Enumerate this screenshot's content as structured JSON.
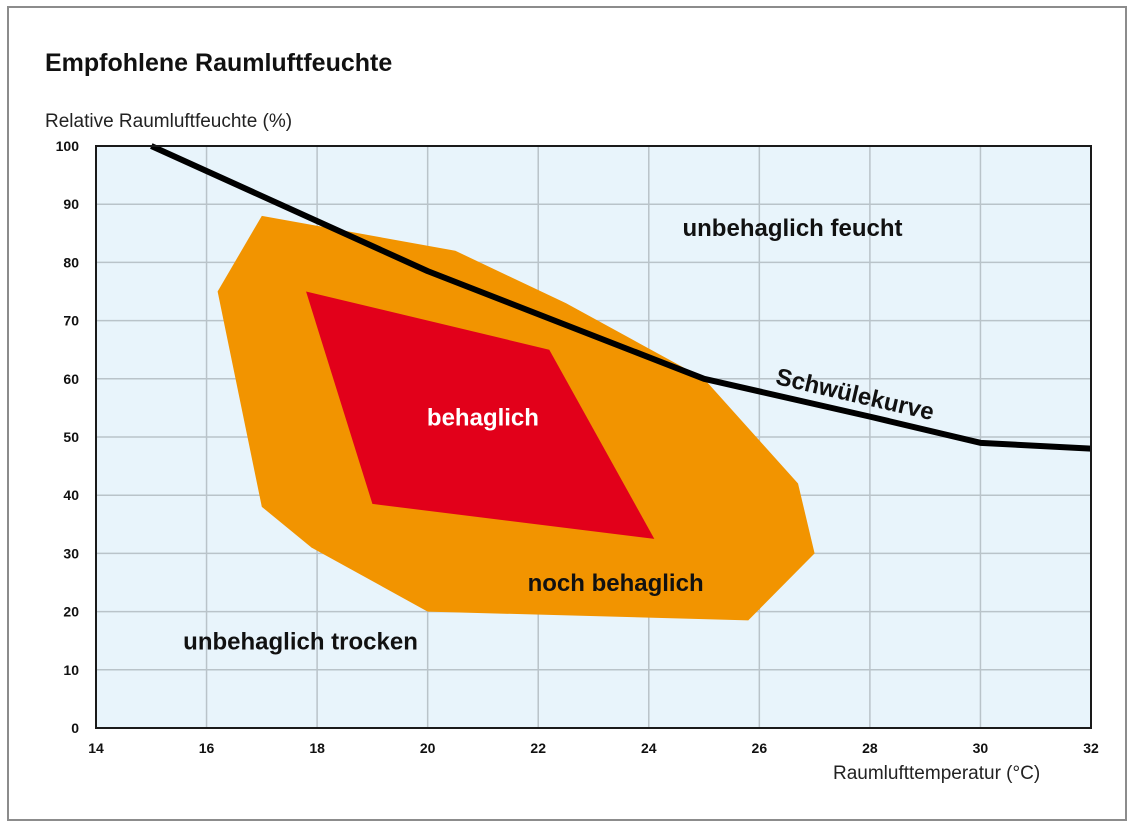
{
  "chart_data": {
    "type": "area",
    "title": "Empfohlene Raumluftfeuchte",
    "ylabel": "Relative Raumluftfeuchte (%)",
    "xlabel": "Raumlufttemperatur (°C)",
    "xlim": [
      14,
      32
    ],
    "ylim": [
      0,
      100
    ],
    "x_ticks": [
      14,
      16,
      18,
      20,
      22,
      24,
      26,
      28,
      30,
      32
    ],
    "y_ticks": [
      0,
      10,
      20,
      30,
      40,
      50,
      60,
      70,
      80,
      90,
      100
    ],
    "grid": true,
    "background_color": "#e8f4fb",
    "series": [
      {
        "name": "noch behaglich",
        "color": "#f29400",
        "polygon": [
          [
            17,
            88
          ],
          [
            20.5,
            82
          ],
          [
            22.5,
            73
          ],
          [
            25,
            60
          ],
          [
            26.7,
            42
          ],
          [
            27,
            30
          ],
          [
            25.8,
            18.5
          ],
          [
            20,
            20
          ],
          [
            17.9,
            31
          ],
          [
            17,
            38
          ],
          [
            16.2,
            75
          ]
        ]
      },
      {
        "name": "behaglich",
        "color": "#e2001a",
        "polygon": [
          [
            17.8,
            75
          ],
          [
            22.2,
            65
          ],
          [
            24.1,
            32.5
          ],
          [
            19,
            38.5
          ]
        ]
      },
      {
        "name": "Schwülekurve",
        "color": "#000000",
        "points": [
          [
            15,
            100
          ],
          [
            20,
            78.5
          ],
          [
            25,
            60
          ],
          [
            28,
            53.5
          ],
          [
            30,
            49
          ],
          [
            32,
            48
          ]
        ]
      }
    ],
    "annotations": [
      {
        "text": "unbehaglich feucht",
        "x": 26.6,
        "y": 84.5,
        "color": "#111111"
      },
      {
        "text": "behaglich",
        "x": 21,
        "y": 52,
        "color": "#ffffff"
      },
      {
        "text": "noch behaglich",
        "x": 23.4,
        "y": 23.5,
        "color": "#111111"
      },
      {
        "text": "unbehaglich trocken",
        "x": 17.7,
        "y": 13.5,
        "color": "#111111"
      },
      {
        "text": "Schwülekurve",
        "x": 27.7,
        "y": 56,
        "color": "#111111",
        "rotate": 13
      }
    ]
  }
}
